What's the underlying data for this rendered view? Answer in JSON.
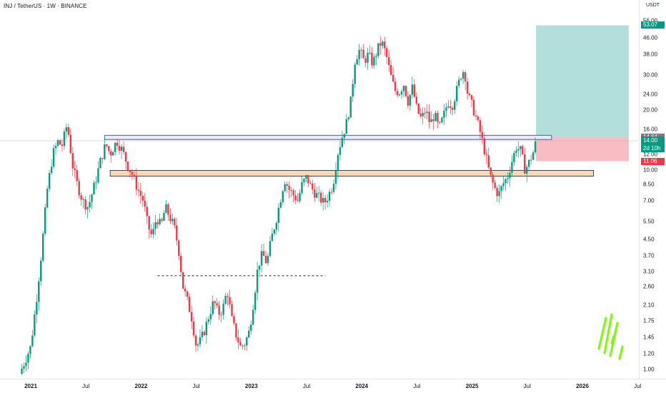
{
  "header": {
    "title": "INJ / TetherUS · 1W · BINANCE",
    "currency": "USDT"
  },
  "colors": {
    "up": "#089981",
    "down": "#f23645",
    "target_zone": "#b2dfdb",
    "stop_zone": "#f9bcc3",
    "support_zone_fill": "#fcd9b6",
    "resistance_line": "#5b77c7",
    "logo": "#7cfc00"
  },
  "price_tags": {
    "target": "53.07",
    "entry_top": "14.64",
    "current": "14.00",
    "countdown": "2d 10h",
    "stop": "11.06"
  },
  "chart_data": {
    "type": "candlestick",
    "title": "INJ / TetherUS · 1W · BINANCE",
    "y_scale": "log",
    "ylim": [
      0.9,
      58
    ],
    "y_ticks": [
      "56.00",
      "46.00",
      "38.00",
      "30.00",
      "24.00",
      "20.00",
      "16.00",
      "14.00",
      "12.00",
      "10.00",
      "8.50",
      "7.00",
      "5.50",
      "4.50",
      "3.70",
      "3.10",
      "2.60",
      "2.10",
      "1.75",
      "1.45",
      "1.20",
      "1.00"
    ],
    "x_ticks": [
      {
        "label": "2021",
        "year": true
      },
      {
        "label": "Jul",
        "year": false
      },
      {
        "label": "2022",
        "year": true
      },
      {
        "label": "Jul",
        "year": false
      },
      {
        "label": "2023",
        "year": true
      },
      {
        "label": "Jul",
        "year": false
      },
      {
        "label": "2024",
        "year": true
      },
      {
        "label": "Jul",
        "year": false
      },
      {
        "label": "2025",
        "year": true
      },
      {
        "label": "Jul",
        "year": false
      },
      {
        "label": "2026",
        "year": true
      },
      {
        "label": "Jul",
        "year": false
      }
    ],
    "price_path": [
      [
        2020.9,
        0.95
      ],
      [
        2021.0,
        1.3
      ],
      [
        2021.05,
        2.2
      ],
      [
        2021.1,
        4.0
      ],
      [
        2021.15,
        8.0
      ],
      [
        2021.2,
        12.0
      ],
      [
        2021.25,
        14.0
      ],
      [
        2021.28,
        13.0
      ],
      [
        2021.33,
        17.0
      ],
      [
        2021.38,
        10.5
      ],
      [
        2021.42,
        8.5
      ],
      [
        2021.47,
        7.0
      ],
      [
        2021.52,
        6.5
      ],
      [
        2021.58,
        8.5
      ],
      [
        2021.63,
        11.0
      ],
      [
        2021.68,
        13.5
      ],
      [
        2021.72,
        12.0
      ],
      [
        2021.78,
        14.0
      ],
      [
        2021.83,
        12.5
      ],
      [
        2021.88,
        10.5
      ],
      [
        2021.92,
        9.5
      ],
      [
        2021.97,
        8.0
      ],
      [
        2022.02,
        7.0
      ],
      [
        2022.06,
        5.3
      ],
      [
        2022.1,
        4.6
      ],
      [
        2022.14,
        5.8
      ],
      [
        2022.18,
        5.2
      ],
      [
        2022.22,
        6.5
      ],
      [
        2022.26,
        5.8
      ],
      [
        2022.3,
        5.2
      ],
      [
        2022.34,
        4.0
      ],
      [
        2022.38,
        2.6
      ],
      [
        2022.42,
        2.2
      ],
      [
        2022.46,
        1.8
      ],
      [
        2022.5,
        1.3
      ],
      [
        2022.54,
        1.4
      ],
      [
        2022.58,
        1.6
      ],
      [
        2022.62,
        1.9
      ],
      [
        2022.66,
        2.2
      ],
      [
        2022.7,
        1.9
      ],
      [
        2022.74,
        2.0
      ],
      [
        2022.78,
        2.5
      ],
      [
        2022.82,
        1.8
      ],
      [
        2022.86,
        1.5
      ],
      [
        2022.9,
        1.3
      ],
      [
        2022.94,
        1.35
      ],
      [
        2022.98,
        1.55
      ],
      [
        2023.02,
        2.2
      ],
      [
        2023.06,
        3.3
      ],
      [
        2023.1,
        3.8
      ],
      [
        2023.14,
        3.4
      ],
      [
        2023.18,
        4.5
      ],
      [
        2023.22,
        5.5
      ],
      [
        2023.26,
        7.0
      ],
      [
        2023.3,
        9.0
      ],
      [
        2023.34,
        8.0
      ],
      [
        2023.38,
        7.5
      ],
      [
        2023.42,
        7.0
      ],
      [
        2023.46,
        8.5
      ],
      [
        2023.5,
        9.2
      ],
      [
        2023.54,
        8.2
      ],
      [
        2023.58,
        7.6
      ],
      [
        2023.62,
        7.2
      ],
      [
        2023.66,
        6.8
      ],
      [
        2023.7,
        7.5
      ],
      [
        2023.74,
        8.5
      ],
      [
        2023.78,
        12.0
      ],
      [
        2023.82,
        14.5
      ],
      [
        2023.86,
        17.0
      ],
      [
        2023.9,
        22.0
      ],
      [
        2023.94,
        36.0
      ],
      [
        2023.98,
        40.0
      ],
      [
        2024.02,
        35.0
      ],
      [
        2024.06,
        38.0
      ],
      [
        2024.1,
        34.0
      ],
      [
        2024.14,
        40.0
      ],
      [
        2024.18,
        44.0
      ],
      [
        2024.22,
        38.0
      ],
      [
        2024.26,
        30.0
      ],
      [
        2024.3,
        25.0
      ],
      [
        2024.34,
        24.5
      ],
      [
        2024.38,
        27.0
      ],
      [
        2024.42,
        22.0
      ],
      [
        2024.46,
        26.0
      ],
      [
        2024.5,
        20.0
      ],
      [
        2024.54,
        18.0
      ],
      [
        2024.58,
        20.0
      ],
      [
        2024.62,
        17.0
      ],
      [
        2024.66,
        19.0
      ],
      [
        2024.7,
        16.0
      ],
      [
        2024.74,
        18.5
      ],
      [
        2024.78,
        22.0
      ],
      [
        2024.82,
        21.0
      ],
      [
        2024.86,
        25.0
      ],
      [
        2024.9,
        30.0
      ],
      [
        2024.93,
        32.0
      ],
      [
        2024.96,
        24.0
      ],
      [
        2025.0,
        21.0
      ],
      [
        2025.04,
        18.0
      ],
      [
        2025.08,
        15.0
      ],
      [
        2025.12,
        12.0
      ],
      [
        2025.16,
        9.5
      ],
      [
        2025.2,
        8.2
      ],
      [
        2025.24,
        7.5
      ],
      [
        2025.28,
        8.5
      ],
      [
        2025.32,
        9.2
      ],
      [
        2025.36,
        11.0
      ],
      [
        2025.4,
        13.0
      ],
      [
        2025.44,
        12.5
      ],
      [
        2025.48,
        10.0
      ],
      [
        2025.52,
        11.0
      ],
      [
        2025.56,
        12.5
      ],
      [
        2025.58,
        14.0
      ]
    ],
    "zones": [
      {
        "kind": "target",
        "x0": 2025.58,
        "x1": 2026.42,
        "y0": 14.64,
        "y1": 53.07
      },
      {
        "kind": "stop",
        "x0": 2025.58,
        "x1": 2026.42,
        "y0": 11.06,
        "y1": 14.64
      },
      {
        "kind": "resistance",
        "x0": 2021.67,
        "x1": 2025.72,
        "y0": 14.2,
        "y1": 14.9
      },
      {
        "kind": "support",
        "x0": 2021.72,
        "x1": 2026.1,
        "y0": 9.3,
        "y1": 9.95
      }
    ],
    "dashed_level": {
      "x0": 2022.15,
      "x1": 2023.67,
      "y": 2.95
    },
    "current_price": 14.0
  }
}
